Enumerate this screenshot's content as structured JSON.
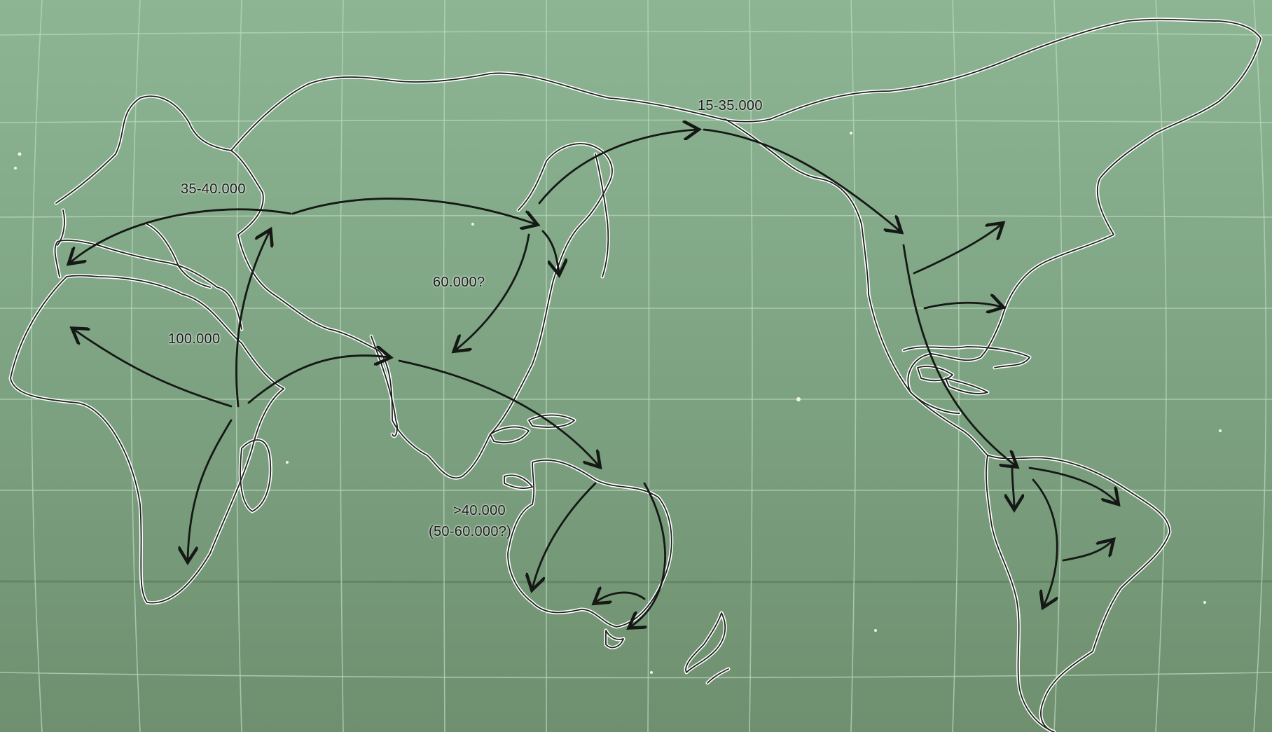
{
  "map": {
    "labels": {
      "europe": "35-40.000",
      "beringia": "15-35.000",
      "east_asia": "60.000?",
      "africa": "100.000",
      "australia_1": ">40.000",
      "australia_2": "(50-60.000?)"
    },
    "colors": {
      "background": "#7fa485",
      "grid": "#b9d6bc",
      "coastline": "#ffffff",
      "routes": "#151815"
    },
    "legend": "none",
    "grid": true
  }
}
